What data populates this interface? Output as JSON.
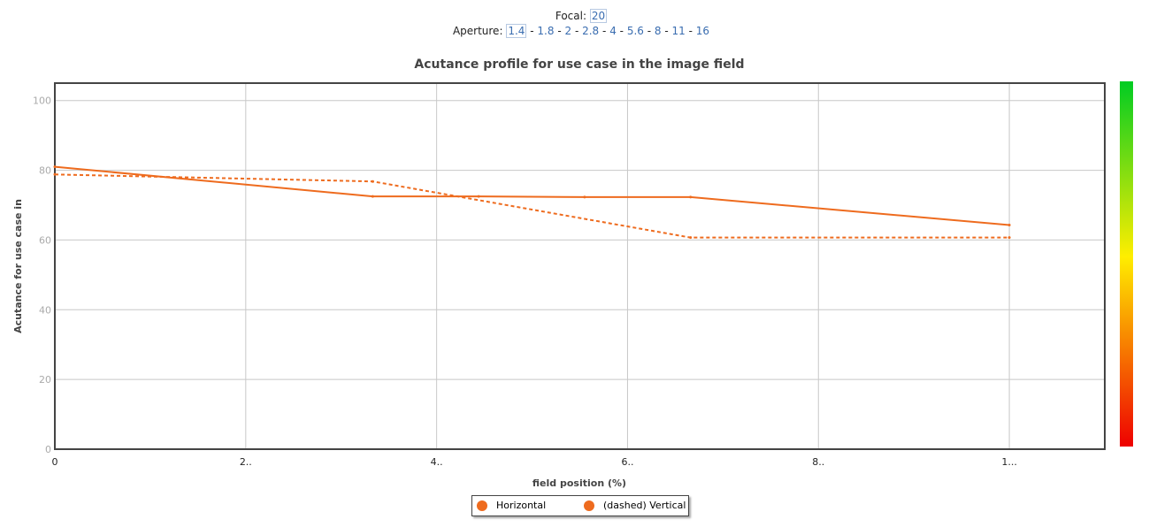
{
  "controls": {
    "focal_label": "Focal:",
    "focal_value": "20",
    "aperture_label": "Aperture:",
    "apertures": [
      "1.4",
      "1.8",
      "2",
      "2.8",
      "4",
      "5.6",
      "8",
      "11",
      "16"
    ],
    "selected_aperture": "1.4"
  },
  "colors": {
    "series": "#ee6b1e",
    "scale_top": "#00cc22",
    "scale_mid": "#ffee00",
    "scale_bottom": "#ee0000"
  },
  "chart_data": {
    "type": "line",
    "title": "Acutance profile for use case in the image field",
    "xlabel": "field position (%)",
    "ylabel": "Acutance for use case in",
    "xlim": [
      0,
      110
    ],
    "ylim": [
      0,
      105
    ],
    "x_ticks": [
      0,
      20,
      40,
      60,
      80,
      100
    ],
    "x_tick_labels": [
      "0",
      "2..",
      "4..",
      "6..",
      "8..",
      "1..."
    ],
    "y_ticks": [
      0,
      20,
      40,
      60,
      80,
      100
    ],
    "y_tick_labels": [
      "0",
      "20",
      "40",
      "60",
      "80",
      "100"
    ],
    "grid": true,
    "legend_position": "bottom-center",
    "series": [
      {
        "name": "Horizontal",
        "style": "solid",
        "x": [
          0,
          33.3,
          44.4,
          55.5,
          66.6,
          100
        ],
        "y": [
          81,
          72.5,
          72.5,
          72.3,
          72.3,
          64.3
        ]
      },
      {
        "name": "(dashed) Vertical",
        "style": "dashed",
        "x": [
          0,
          33.3,
          66.6,
          100
        ],
        "y": [
          78.8,
          76.8,
          60.7,
          60.7
        ]
      }
    ]
  }
}
